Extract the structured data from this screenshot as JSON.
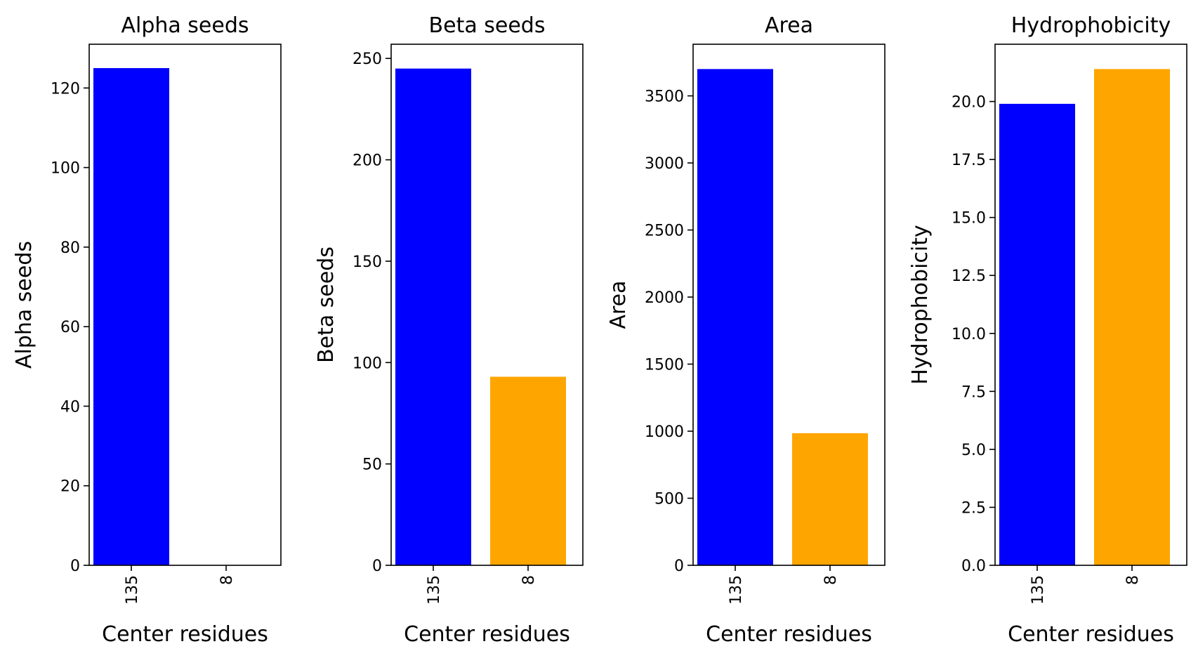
{
  "chart_data": [
    {
      "type": "bar",
      "title": "Alpha seeds",
      "xlabel": "Center residues",
      "ylabel": "Alpha seeds",
      "categories": [
        "135",
        "8"
      ],
      "values": [
        125,
        0
      ],
      "ylim": [
        0,
        131
      ],
      "yticks": [
        0,
        20,
        40,
        60,
        80,
        100,
        120
      ],
      "ytick_labels": [
        "0",
        "20",
        "40",
        "60",
        "80",
        "100",
        "120"
      ],
      "grid": false
    },
    {
      "type": "bar",
      "title": "Beta seeds",
      "xlabel": "Center residues",
      "ylabel": "Beta seeds",
      "categories": [
        "135",
        "8"
      ],
      "values": [
        245,
        93
      ],
      "ylim": [
        0,
        257
      ],
      "yticks": [
        0,
        50,
        100,
        150,
        200,
        250
      ],
      "ytick_labels": [
        "0",
        "50",
        "100",
        "150",
        "200",
        "250"
      ],
      "grid": false
    },
    {
      "type": "bar",
      "title": "Area",
      "xlabel": "Center residues",
      "ylabel": "Area",
      "categories": [
        "135",
        "8"
      ],
      "values": [
        3700,
        985
      ],
      "ylim": [
        0,
        3885
      ],
      "yticks": [
        0,
        500,
        1000,
        1500,
        2000,
        2500,
        3000,
        3500
      ],
      "ytick_labels": [
        "0",
        "500",
        "1000",
        "1500",
        "2000",
        "2500",
        "3000",
        "3500"
      ],
      "grid": false
    },
    {
      "type": "bar",
      "title": "Hydrophobicity",
      "xlabel": "Center residues",
      "ylabel": "Hydrophobicity",
      "categories": [
        "135",
        "8"
      ],
      "values": [
        19.9,
        21.4
      ],
      "ylim": [
        0,
        22.47
      ],
      "yticks": [
        0,
        2.5,
        5,
        7.5,
        10,
        12.5,
        15,
        17.5,
        20
      ],
      "ytick_labels": [
        "0.0",
        "2.5",
        "5.0",
        "7.5",
        "10.0",
        "12.5",
        "15.0",
        "17.5",
        "20.0"
      ],
      "grid": false
    }
  ],
  "colors": {
    "bar_colors": [
      "#0000ff",
      "#ffa500"
    ],
    "axes": "#000000",
    "background": "#ffffff"
  }
}
